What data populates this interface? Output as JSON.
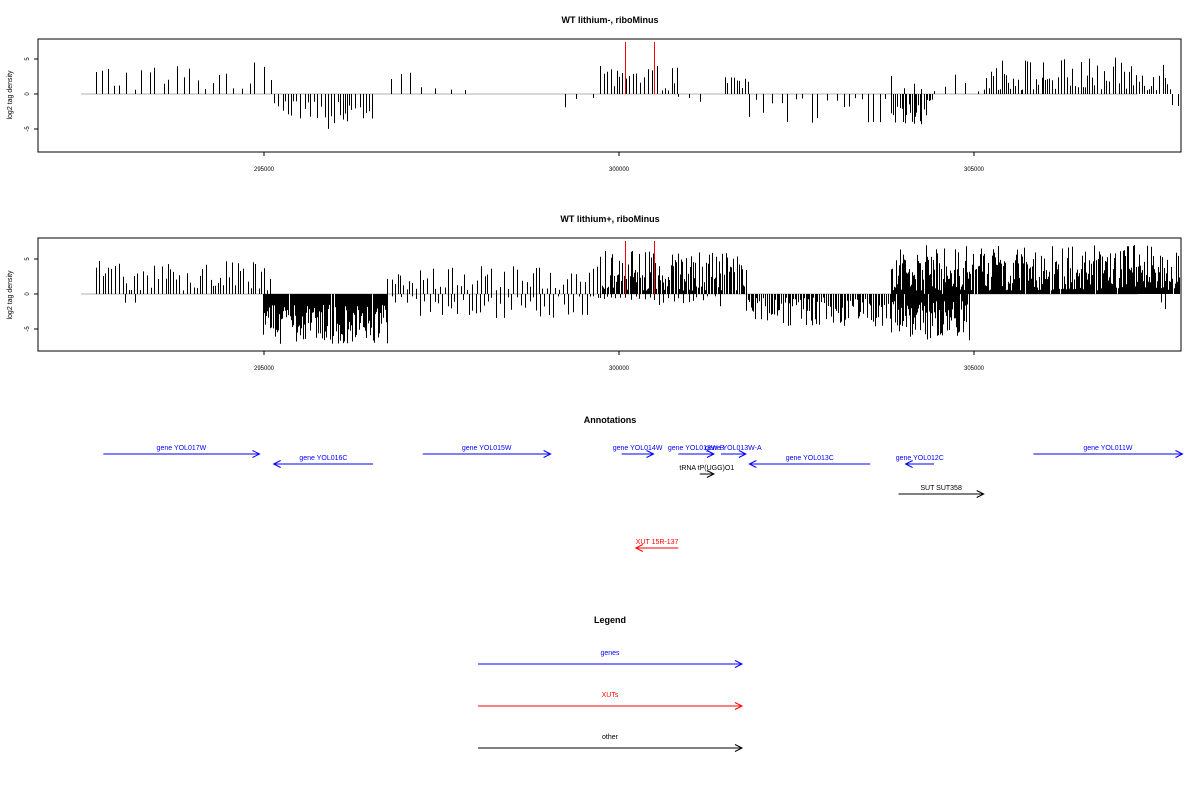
{
  "panels": [
    {
      "title": "WT lithium-, riboMinus",
      "ylabel": "log2 tag density",
      "yticks": [
        "5",
        "0",
        "-5"
      ],
      "density": "sparse"
    },
    {
      "title": "WT lithium+, riboMinus",
      "ylabel": "log2 tag density",
      "yticks": [
        "5",
        "0",
        "-5"
      ],
      "density": "dense"
    }
  ],
  "xticks": [
    "295000",
    "300000",
    "305000"
  ],
  "annotations_title": "Annotations",
  "legend_title": "Legend",
  "colors": {
    "gene": "#0000ff",
    "xut": "#ff0000",
    "other": "#000000",
    "highlight": "#ff0000"
  },
  "annotations": [
    {
      "label": "gene YOL017W",
      "type": "gene",
      "strand": "+",
      "start": 292300,
      "end": 294500
    },
    {
      "label": "gene YOL016C",
      "type": "gene",
      "strand": "-",
      "start": 294700,
      "end": 296100
    },
    {
      "label": "gene YOL015W",
      "type": "gene",
      "strand": "+",
      "start": 296800,
      "end": 298600
    },
    {
      "label": "gene YOL014W",
      "type": "gene",
      "strand": "+",
      "start": 299600,
      "end": 300050
    },
    {
      "label": "gene YOL013W-B",
      "type": "gene",
      "strand": "+",
      "start": 300400,
      "end": 300900
    },
    {
      "label": "gene YOL013W-A",
      "type": "gene",
      "strand": "+",
      "start": 301000,
      "end": 301350
    },
    {
      "label": "gene YOL013C",
      "type": "gene",
      "strand": "-",
      "start": 301400,
      "end": 303100
    },
    {
      "label": "gene YOL012C",
      "type": "gene",
      "strand": "-",
      "start": 303600,
      "end": 304000
    },
    {
      "label": "gene YOL011W",
      "type": "gene",
      "strand": "+",
      "start": 305400,
      "end": 307500
    },
    {
      "label": "tRNA tP(UGG)O1",
      "type": "other",
      "strand": "+",
      "start": 300700,
      "end": 300900
    },
    {
      "label": "SUT SUT358",
      "type": "other",
      "strand": "+",
      "start": 303500,
      "end": 304700
    },
    {
      "label": "XUT 15R-137",
      "type": "xut",
      "strand": "-",
      "start": 299800,
      "end": 300400
    }
  ],
  "legend": [
    {
      "label": "genes",
      "type": "gene"
    },
    {
      "label": "XUTs",
      "type": "xut"
    },
    {
      "label": "other",
      "type": "other"
    }
  ],
  "chart_data": [
    {
      "type": "bar",
      "title": "WT lithium-, riboMinus",
      "xlabel": "",
      "ylabel": "log2 tag density",
      "xlim": [
        292000,
        307600
      ],
      "ylim": [
        -8,
        8
      ],
      "baseline": 0,
      "highlight_positions": [
        299650,
        300050
      ],
      "regions": [
        {
          "start": 292200,
          "end": 294700,
          "sign": 1,
          "min": 0.5,
          "max": 4.6,
          "step": 100
        },
        {
          "start": 294700,
          "end": 296100,
          "sign": -1,
          "min": 1.0,
          "max": 5.0,
          "step": 45
        },
        {
          "start": 296350,
          "end": 297500,
          "sign": 1,
          "min": 0.5,
          "max": 3.2,
          "step": 160
        },
        {
          "start": 298800,
          "end": 299300,
          "sign": -1,
          "min": 0.5,
          "max": 3.0,
          "step": 170
        },
        {
          "start": 299300,
          "end": 300400,
          "sign": 1,
          "min": 0.5,
          "max": 4.0,
          "step": 50
        },
        {
          "start": 300400,
          "end": 300700,
          "sign": -1,
          "min": 0.3,
          "max": 1.2,
          "step": 120
        },
        {
          "start": 301050,
          "end": 301400,
          "sign": 1,
          "min": 0.5,
          "max": 3.0,
          "step": 40
        },
        {
          "start": 301400,
          "end": 303400,
          "sign": -1,
          "min": 0.5,
          "max": 4.3,
          "step": 110
        },
        {
          "start": 303400,
          "end": 304000,
          "sign": -1,
          "min": 0.8,
          "max": 4.4,
          "step": 28
        },
        {
          "start": 303400,
          "end": 304700,
          "sign": 1,
          "min": 0.3,
          "max": 2.8,
          "step": 130
        },
        {
          "start": 304700,
          "end": 307350,
          "sign": 1,
          "min": 0.5,
          "max": 5.2,
          "step": 35
        },
        {
          "start": 307350,
          "end": 307450,
          "sign": -1,
          "min": 1.5,
          "max": 2.5,
          "step": 60
        }
      ]
    },
    {
      "type": "bar",
      "title": "WT lithium+, riboMinus",
      "xlabel": "",
      "ylabel": "log2 tag density",
      "xlim": [
        292000,
        307600
      ],
      "ylim": [
        -8,
        8
      ],
      "baseline": 0,
      "highlight_positions": [
        299650,
        300050
      ],
      "regions": [
        {
          "start": 292200,
          "end": 294700,
          "sign": 1,
          "min": 0.5,
          "max": 5.0,
          "step": 45
        },
        {
          "start": 292600,
          "end": 292800,
          "sign": -1,
          "min": 1.0,
          "max": 2.0,
          "step": 120
        },
        {
          "start": 294550,
          "end": 296300,
          "sign": -1,
          "min": 1.5,
          "max": 7.2,
          "step": 12
        },
        {
          "start": 296300,
          "end": 299300,
          "sign": 1,
          "min": 0.5,
          "max": 4.0,
          "step": 55
        },
        {
          "start": 296300,
          "end": 299300,
          "sign": -1,
          "min": 0.3,
          "max": 3.5,
          "step": 65
        },
        {
          "start": 299300,
          "end": 300600,
          "sign": 1,
          "min": 0.5,
          "max": 6.2,
          "step": 16
        },
        {
          "start": 299300,
          "end": 300600,
          "sign": -1,
          "min": 0.3,
          "max": 2.0,
          "step": 70
        },
        {
          "start": 300600,
          "end": 301350,
          "sign": 1,
          "min": 0.5,
          "max": 6.0,
          "step": 20
        },
        {
          "start": 300600,
          "end": 301000,
          "sign": -1,
          "min": 0.3,
          "max": 2.0,
          "step": 80
        },
        {
          "start": 301350,
          "end": 303400,
          "sign": -1,
          "min": 0.5,
          "max": 4.6,
          "step": 22
        },
        {
          "start": 303400,
          "end": 304500,
          "sign": -1,
          "min": 1.0,
          "max": 6.6,
          "step": 12
        },
        {
          "start": 303400,
          "end": 307450,
          "sign": 1,
          "min": 0.5,
          "max": 7.0,
          "step": 12
        },
        {
          "start": 307200,
          "end": 307300,
          "sign": -1,
          "min": 1.0,
          "max": 3.0,
          "step": 60
        }
      ]
    }
  ]
}
